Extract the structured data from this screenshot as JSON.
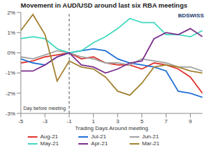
{
  "chart_data": {
    "type": "line",
    "title": "Movement in AUD/USD around last six RBA meetings",
    "x_label": "Trading Days Around meeting",
    "annotations": [
      "BDSWISS"
    ],
    "reference_line": {
      "x": -1,
      "label": "Day before meeting"
    },
    "x": [
      -5,
      -4,
      -3,
      -2,
      -1,
      0,
      1,
      2,
      3,
      4,
      5,
      6,
      7,
      8,
      9,
      10
    ],
    "series": [
      {
        "name": "Aug-21",
        "color": "#e0322b",
        "values": [
          -0.5,
          -0.4,
          -0.2,
          -0.1,
          0,
          -0.3,
          -0.2,
          -0.5,
          -0.6,
          -0.6,
          -0.8,
          -0.5,
          -0.6,
          -0.8,
          -1.2,
          -2.0
        ]
      },
      {
        "name": "Jul-21",
        "color": "#1f6fd6",
        "values": [
          -0.3,
          -0.5,
          -0.6,
          -0.2,
          0,
          0.1,
          0.2,
          0.1,
          -0.3,
          -0.5,
          -0.6,
          -0.7,
          -0.9,
          -1.9,
          -2.0,
          -2.2
        ]
      },
      {
        "name": "Jun-21",
        "color": "#a0a0a0",
        "values": [
          -0.2,
          -0.3,
          -0.1,
          0.1,
          0,
          -0.2,
          -0.3,
          -0.5,
          -0.5,
          -0.6,
          -0.3,
          -0.4,
          -0.5,
          -0.7,
          -0.7,
          -0.9
        ]
      },
      {
        "name": "May-21",
        "color": "#3fd8bf",
        "values": [
          0.7,
          0.8,
          0.7,
          0.2,
          0,
          0.1,
          0.5,
          0.8,
          1.2,
          1.7,
          1.5,
          1.5,
          0.9,
          0.9,
          0.8,
          1.1
        ]
      },
      {
        "name": "Apr-21",
        "color": "#7a2d8c",
        "values": [
          -0.9,
          -0.9,
          -0.6,
          -0.2,
          0,
          -0.6,
          -0.7,
          -1.0,
          -0.8,
          -0.5,
          -0.4,
          0.7,
          1.0,
          0.9,
          1.2,
          0.8
        ]
      },
      {
        "name": "Mar-21",
        "color": "#a2812f",
        "values": [
          1.1,
          1.9,
          0.9,
          -1.4,
          -0.4,
          -0.7,
          -0.8,
          -1.2,
          -1.9,
          -2.1,
          -1.5,
          -0.7,
          -0.6,
          -0.7,
          -0.9,
          -1.0
        ]
      }
    ],
    "xlim": [
      -5,
      10
    ],
    "xticks": [
      -5,
      -3,
      -1,
      1,
      3,
      5,
      7,
      9
    ],
    "ylim": [
      -3,
      2
    ],
    "yticks": [
      {
        "value": -3,
        "label": "-3%"
      },
      {
        "value": -2,
        "label": "-2%"
      },
      {
        "value": -1,
        "label": "-1%"
      },
      {
        "value": 0,
        "label": "0%"
      },
      {
        "value": 1,
        "label": "1%"
      },
      {
        "value": 2,
        "label": "2%"
      }
    ],
    "grid": false,
    "legend": "bottom"
  }
}
